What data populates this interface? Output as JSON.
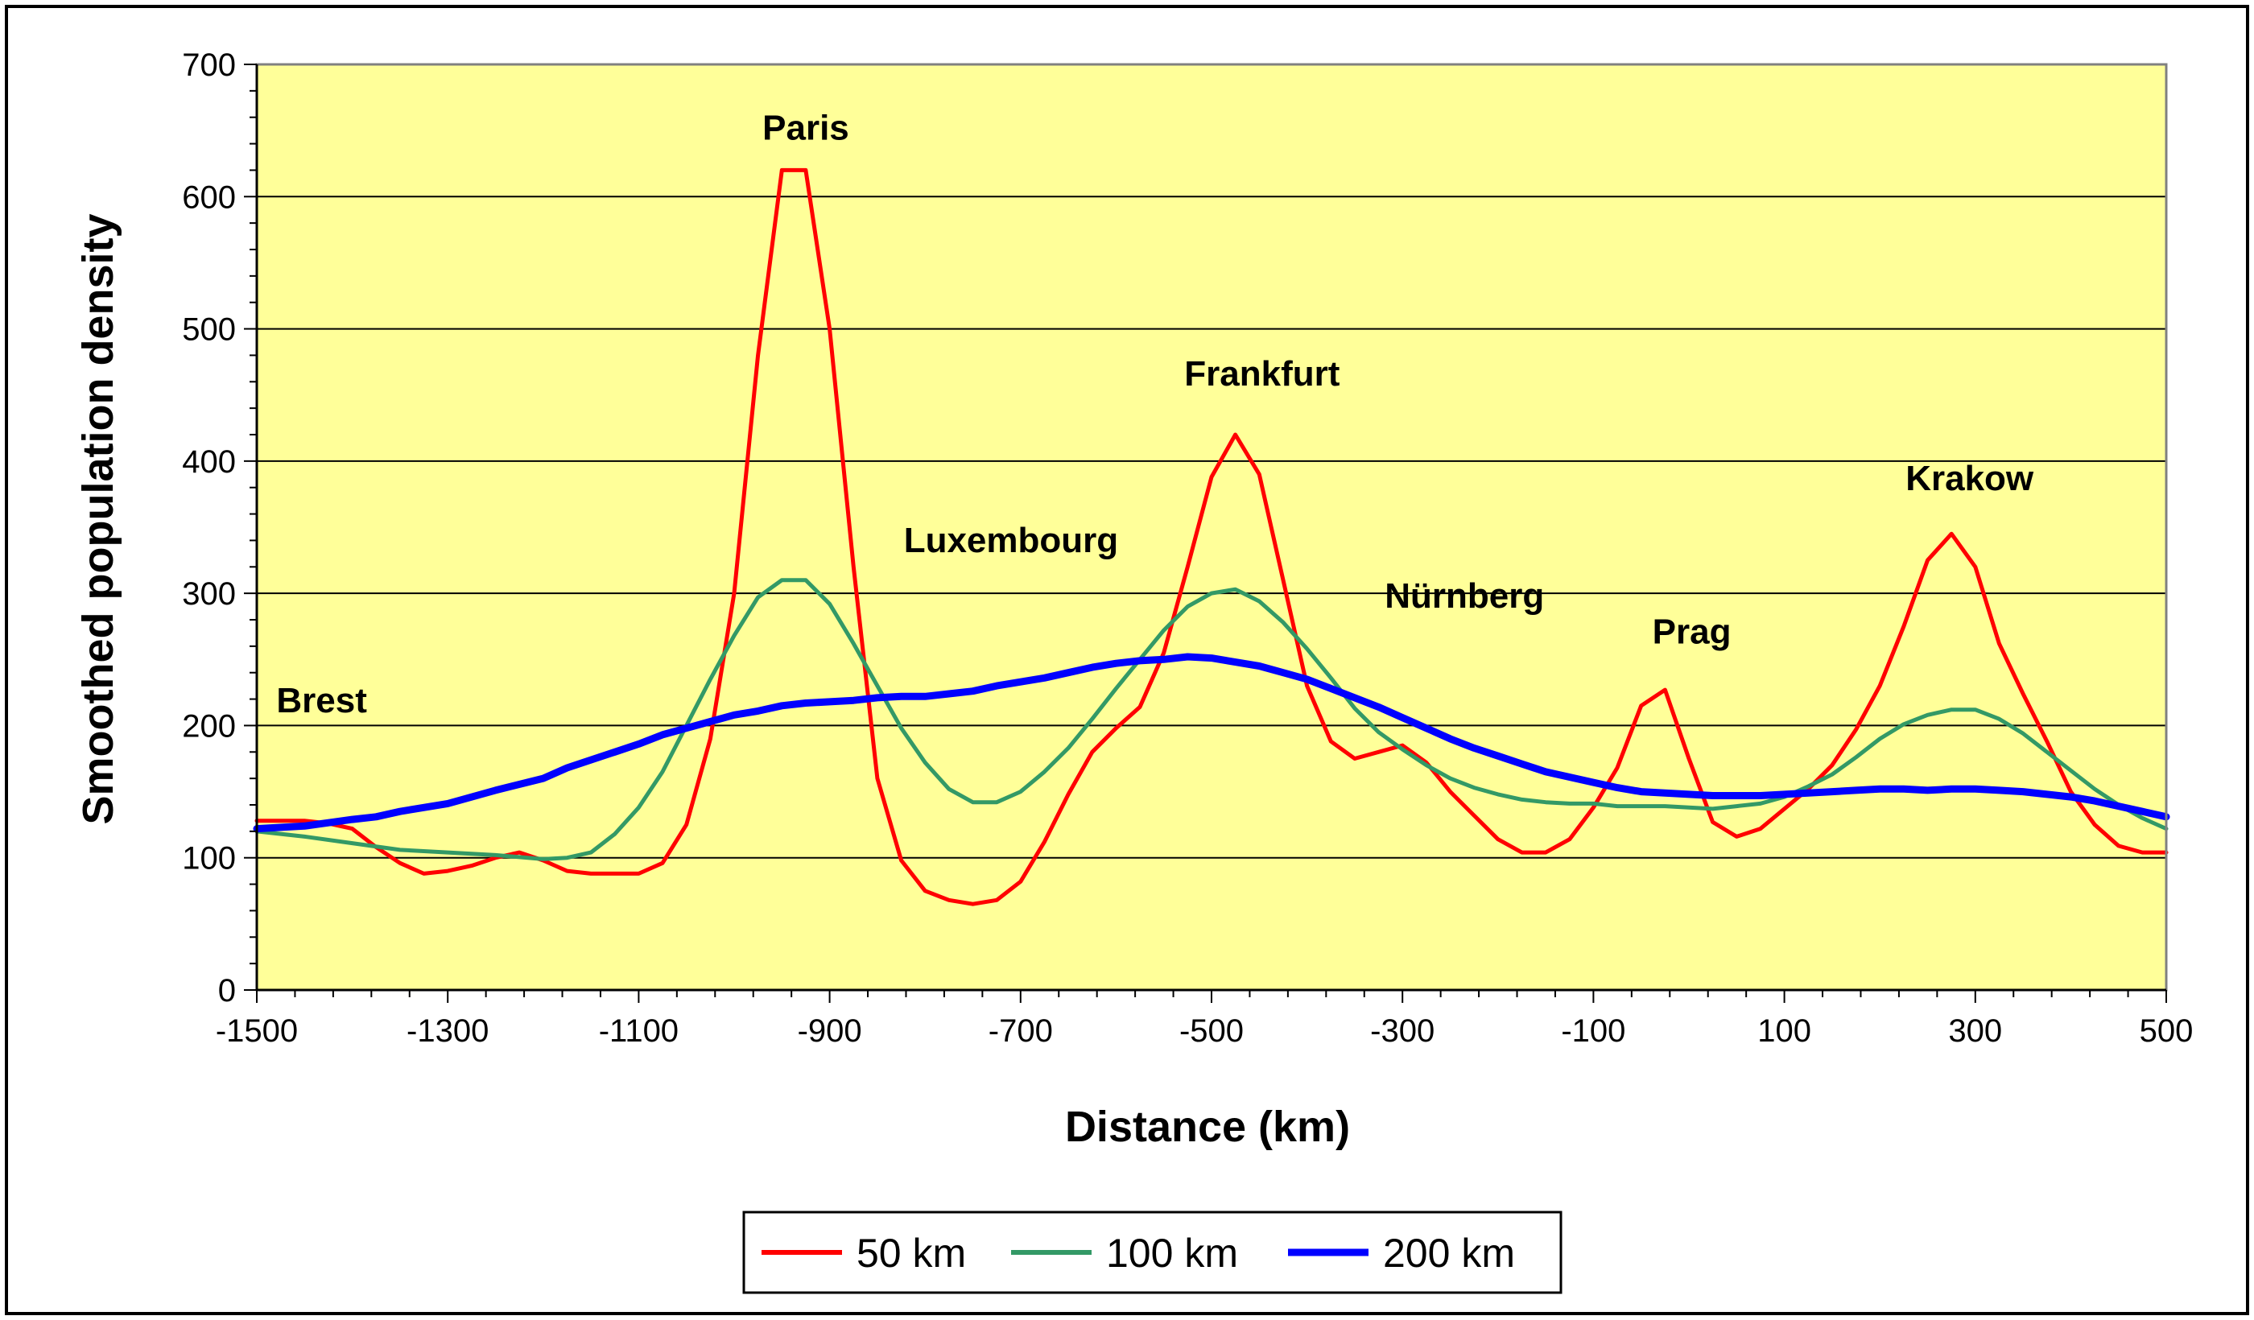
{
  "chart_data": {
    "type": "line",
    "title": "",
    "xlabel": "Distance (km)",
    "ylabel": "Smoothed population density",
    "xlim": [
      -1500,
      500
    ],
    "ylim": [
      0,
      700
    ],
    "x_ticks": [
      -1500,
      -1300,
      -1100,
      -900,
      -700,
      -500,
      -300,
      -100,
      100,
      300,
      500
    ],
    "y_ticks": [
      0,
      100,
      200,
      300,
      400,
      500,
      600,
      700
    ],
    "grid": "horizontal major gridlines",
    "plot_background": "#FFFF99",
    "legend_position": "bottom-center",
    "series": [
      {
        "name": "50 km",
        "color": "#FF0000",
        "points": [
          [
            -1500,
            128
          ],
          [
            -1475,
            128
          ],
          [
            -1450,
            128
          ],
          [
            -1425,
            126
          ],
          [
            -1400,
            122
          ],
          [
            -1375,
            108
          ],
          [
            -1350,
            96
          ],
          [
            -1325,
            88
          ],
          [
            -1300,
            90
          ],
          [
            -1275,
            94
          ],
          [
            -1250,
            100
          ],
          [
            -1225,
            104
          ],
          [
            -1200,
            98
          ],
          [
            -1175,
            90
          ],
          [
            -1150,
            88
          ],
          [
            -1125,
            88
          ],
          [
            -1100,
            88
          ],
          [
            -1075,
            96
          ],
          [
            -1050,
            125
          ],
          [
            -1025,
            190
          ],
          [
            -1000,
            300
          ],
          [
            -975,
            480
          ],
          [
            -950,
            620
          ],
          [
            -925,
            620
          ],
          [
            -900,
            500
          ],
          [
            -875,
            320
          ],
          [
            -850,
            160
          ],
          [
            -825,
            98
          ],
          [
            -800,
            75
          ],
          [
            -775,
            68
          ],
          [
            -750,
            65
          ],
          [
            -725,
            68
          ],
          [
            -700,
            82
          ],
          [
            -675,
            112
          ],
          [
            -650,
            148
          ],
          [
            -625,
            180
          ],
          [
            -600,
            198
          ],
          [
            -575,
            214
          ],
          [
            -550,
            255
          ],
          [
            -525,
            320
          ],
          [
            -500,
            388
          ],
          [
            -475,
            420
          ],
          [
            -450,
            390
          ],
          [
            -425,
            310
          ],
          [
            -400,
            230
          ],
          [
            -375,
            188
          ],
          [
            -350,
            175
          ],
          [
            -325,
            180
          ],
          [
            -300,
            185
          ],
          [
            -275,
            172
          ],
          [
            -250,
            150
          ],
          [
            -225,
            132
          ],
          [
            -200,
            114
          ],
          [
            -175,
            104
          ],
          [
            -150,
            104
          ],
          [
            -125,
            114
          ],
          [
            -100,
            138
          ],
          [
            -75,
            168
          ],
          [
            -50,
            215
          ],
          [
            -25,
            227
          ],
          [
            0,
            175
          ],
          [
            25,
            127
          ],
          [
            50,
            116
          ],
          [
            75,
            122
          ],
          [
            100,
            137
          ],
          [
            125,
            152
          ],
          [
            150,
            170
          ],
          [
            175,
            197
          ],
          [
            200,
            230
          ],
          [
            225,
            275
          ],
          [
            250,
            325
          ],
          [
            275,
            345
          ],
          [
            300,
            320
          ],
          [
            325,
            262
          ],
          [
            350,
            224
          ],
          [
            375,
            188
          ],
          [
            400,
            150
          ],
          [
            425,
            125
          ],
          [
            450,
            109
          ],
          [
            475,
            104
          ],
          [
            500,
            104
          ]
        ]
      },
      {
        "name": "100 km",
        "color": "#339966",
        "points": [
          [
            -1500,
            120
          ],
          [
            -1450,
            116
          ],
          [
            -1400,
            111
          ],
          [
            -1350,
            106
          ],
          [
            -1300,
            104
          ],
          [
            -1250,
            102
          ],
          [
            -1200,
            99
          ],
          [
            -1175,
            100
          ],
          [
            -1150,
            104
          ],
          [
            -1125,
            118
          ],
          [
            -1100,
            138
          ],
          [
            -1075,
            165
          ],
          [
            -1050,
            200
          ],
          [
            -1025,
            235
          ],
          [
            -1000,
            268
          ],
          [
            -975,
            297
          ],
          [
            -950,
            310
          ],
          [
            -925,
            310
          ],
          [
            -900,
            292
          ],
          [
            -875,
            262
          ],
          [
            -850,
            230
          ],
          [
            -825,
            198
          ],
          [
            -800,
            172
          ],
          [
            -775,
            152
          ],
          [
            -750,
            142
          ],
          [
            -725,
            142
          ],
          [
            -700,
            150
          ],
          [
            -675,
            165
          ],
          [
            -650,
            183
          ],
          [
            -625,
            205
          ],
          [
            -600,
            228
          ],
          [
            -575,
            250
          ],
          [
            -550,
            272
          ],
          [
            -525,
            290
          ],
          [
            -500,
            300
          ],
          [
            -475,
            303
          ],
          [
            -450,
            294
          ],
          [
            -425,
            278
          ],
          [
            -400,
            258
          ],
          [
            -375,
            236
          ],
          [
            -350,
            213
          ],
          [
            -325,
            195
          ],
          [
            -300,
            182
          ],
          [
            -275,
            170
          ],
          [
            -250,
            160
          ],
          [
            -225,
            153
          ],
          [
            -200,
            148
          ],
          [
            -175,
            144
          ],
          [
            -150,
            142
          ],
          [
            -125,
            141
          ],
          [
            -100,
            141
          ],
          [
            -75,
            139
          ],
          [
            -50,
            139
          ],
          [
            -25,
            139
          ],
          [
            0,
            138
          ],
          [
            25,
            137
          ],
          [
            50,
            139
          ],
          [
            75,
            141
          ],
          [
            100,
            146
          ],
          [
            125,
            154
          ],
          [
            150,
            163
          ],
          [
            175,
            176
          ],
          [
            200,
            190
          ],
          [
            225,
            201
          ],
          [
            250,
            208
          ],
          [
            275,
            212
          ],
          [
            300,
            212
          ],
          [
            325,
            205
          ],
          [
            350,
            194
          ],
          [
            375,
            180
          ],
          [
            400,
            166
          ],
          [
            425,
            152
          ],
          [
            450,
            140
          ],
          [
            475,
            130
          ],
          [
            500,
            122
          ]
        ]
      },
      {
        "name": "200 km",
        "color": "#0000FF",
        "points": [
          [
            -1500,
            122
          ],
          [
            -1450,
            124
          ],
          [
            -1400,
            129
          ],
          [
            -1375,
            131
          ],
          [
            -1350,
            135
          ],
          [
            -1300,
            141
          ],
          [
            -1250,
            151
          ],
          [
            -1200,
            160
          ],
          [
            -1175,
            168
          ],
          [
            -1150,
            174
          ],
          [
            -1125,
            180
          ],
          [
            -1100,
            186
          ],
          [
            -1075,
            193
          ],
          [
            -1050,
            198
          ],
          [
            -1025,
            203
          ],
          [
            -1000,
            208
          ],
          [
            -975,
            211
          ],
          [
            -950,
            215
          ],
          [
            -925,
            217
          ],
          [
            -900,
            218
          ],
          [
            -875,
            219
          ],
          [
            -850,
            221
          ],
          [
            -825,
            222
          ],
          [
            -800,
            222
          ],
          [
            -775,
            224
          ],
          [
            -750,
            226
          ],
          [
            -725,
            230
          ],
          [
            -700,
            233
          ],
          [
            -675,
            236
          ],
          [
            -650,
            240
          ],
          [
            -625,
            244
          ],
          [
            -600,
            247
          ],
          [
            -575,
            249
          ],
          [
            -550,
            250
          ],
          [
            -525,
            252
          ],
          [
            -500,
            251
          ],
          [
            -475,
            248
          ],
          [
            -450,
            245
          ],
          [
            -425,
            240
          ],
          [
            -400,
            235
          ],
          [
            -375,
            228
          ],
          [
            -350,
            221
          ],
          [
            -325,
            214
          ],
          [
            -300,
            206
          ],
          [
            -275,
            198
          ],
          [
            -250,
            190
          ],
          [
            -225,
            183
          ],
          [
            -200,
            177
          ],
          [
            -175,
            171
          ],
          [
            -150,
            165
          ],
          [
            -125,
            161
          ],
          [
            -100,
            157
          ],
          [
            -75,
            153
          ],
          [
            -50,
            150
          ],
          [
            -25,
            149
          ],
          [
            0,
            148
          ],
          [
            25,
            147
          ],
          [
            50,
            147
          ],
          [
            75,
            147
          ],
          [
            100,
            148
          ],
          [
            125,
            149
          ],
          [
            150,
            150
          ],
          [
            175,
            151
          ],
          [
            200,
            152
          ],
          [
            225,
            152
          ],
          [
            250,
            151
          ],
          [
            275,
            152
          ],
          [
            300,
            152
          ],
          [
            325,
            151
          ],
          [
            350,
            150
          ],
          [
            375,
            148
          ],
          [
            400,
            146
          ],
          [
            425,
            143
          ],
          [
            450,
            139
          ],
          [
            475,
            135
          ],
          [
            500,
            131
          ]
        ]
      }
    ],
    "annotations": [
      {
        "text": "Paris",
        "x": -925,
        "y": 643
      },
      {
        "text": "Frankfurt",
        "x": -447,
        "y": 457
      },
      {
        "text": "Luxembourg",
        "x": -710,
        "y": 331
      },
      {
        "text": "Nürnberg",
        "x": -235,
        "y": 289
      },
      {
        "text": "Prag",
        "x": 3,
        "y": 262
      },
      {
        "text": "Brest",
        "x": -1432,
        "y": 210
      },
      {
        "text": "Krakow",
        "x": 294,
        "y": 378
      }
    ]
  }
}
